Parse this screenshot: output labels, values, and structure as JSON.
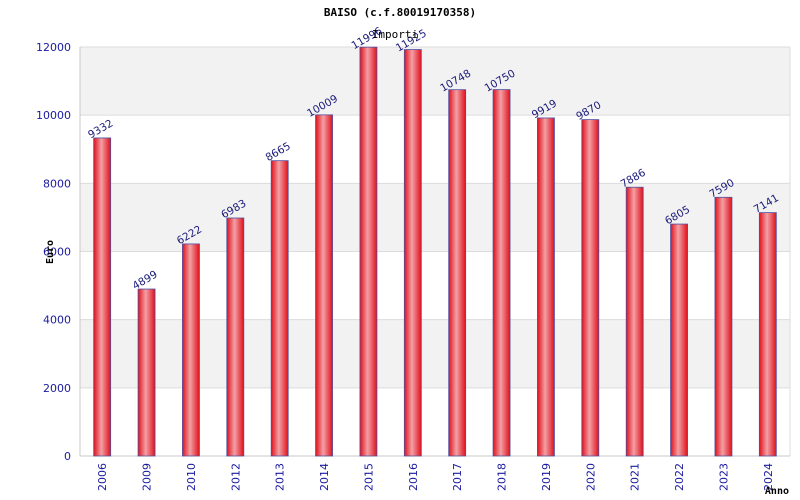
{
  "chart_data": {
    "type": "bar",
    "title": "BAISO (c.f.80019170358)",
    "legend": [
      "Importi"
    ],
    "xlabel": "Anno",
    "ylabel": "Euro",
    "ylim": [
      0,
      12000
    ],
    "yticks": [
      0,
      2000,
      4000,
      6000,
      8000,
      10000,
      12000
    ],
    "grid": true,
    "categories": [
      "2006",
      "2009",
      "2010",
      "2012",
      "2013",
      "2014",
      "2015",
      "2016",
      "2017",
      "2018",
      "2019",
      "2020",
      "2021",
      "2022",
      "2023",
      "2024"
    ],
    "series": [
      {
        "name": "Importi",
        "values": [
          9332,
          4899,
          6222,
          6983,
          8665,
          10009,
          11996,
          11925,
          10748,
          10750,
          9919,
          9870,
          7886,
          6805,
          7590,
          7141
        ]
      }
    ],
    "colors": {
      "bar_edge": "#e0101a",
      "bar_center": "#f3a0a6",
      "bar_outline": "#5050a0",
      "band": "#f2f2f2",
      "tick_text": "#1a1aa0"
    }
  }
}
